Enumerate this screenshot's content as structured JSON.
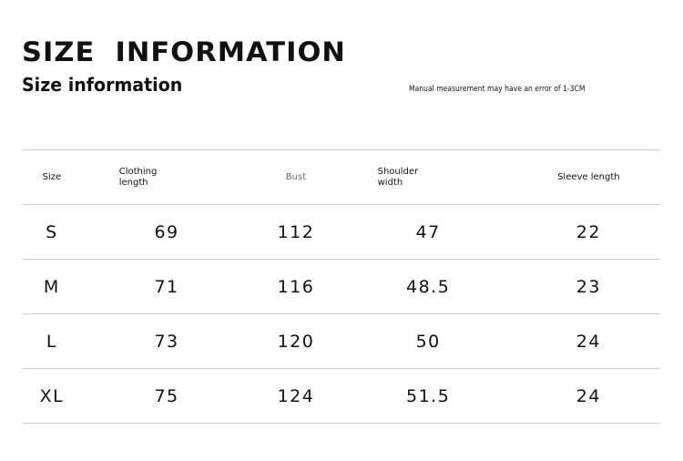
{
  "title": "SIZE INFORMATION",
  "subtitle": "Size information",
  "note": "Manual measurement may have an error of 1-3CM",
  "table": {
    "headers": [
      [
        "Size"
      ],
      [
        "Clothing",
        "length"
      ],
      [
        "Bust"
      ],
      [
        "Shoulder",
        "width"
      ],
      [
        "Sleeve length"
      ]
    ],
    "rows": [
      [
        "S",
        "69",
        "112",
        "47",
        "22"
      ],
      [
        "M",
        "71",
        "116",
        "48.5",
        "23"
      ],
      [
        "L",
        "73",
        "120",
        "50",
        "24"
      ],
      [
        "XL",
        "75",
        "124",
        "51.5",
        "24"
      ]
    ]
  }
}
